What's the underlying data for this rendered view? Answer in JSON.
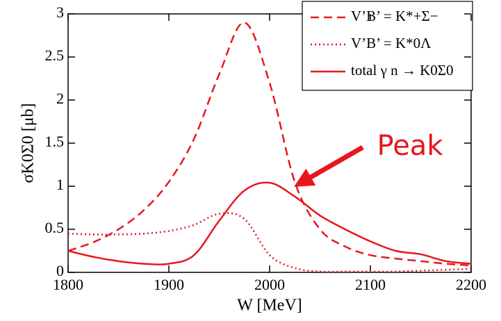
{
  "chart_data": {
    "type": "line",
    "x_label": "W [MeV]",
    "y_label": "σK0Σ0 [μb]",
    "annotation": "Peak",
    "x": [
      1800,
      1825,
      1850,
      1875,
      1900,
      1925,
      1950,
      1975,
      2000,
      2025,
      2050,
      2075,
      2100,
      2125,
      2150,
      2175,
      2200
    ],
    "series": [
      {
        "name": "V’B’ = K*+Σ−",
        "color": "#e8161e",
        "dash": "dashed",
        "values": [
          0.25,
          0.35,
          0.5,
          0.72,
          1.05,
          1.55,
          2.3,
          2.9,
          2.2,
          1.05,
          0.5,
          0.3,
          0.2,
          0.16,
          0.13,
          0.1,
          0.08
        ]
      },
      {
        "name": "V’B’ = K*0Λ",
        "color": "#e8161e",
        "dash": "dotted",
        "values": [
          0.45,
          0.44,
          0.44,
          0.45,
          0.48,
          0.55,
          0.68,
          0.62,
          0.2,
          0.05,
          0.01,
          0.01,
          0.01,
          0.01,
          0.02,
          0.03,
          0.04
        ]
      },
      {
        "name": "total γ n → K0Σ0",
        "color": "#e8161e",
        "dash": "solid",
        "values": [
          0.25,
          0.18,
          0.13,
          0.1,
          0.1,
          0.2,
          0.6,
          0.95,
          1.04,
          0.88,
          0.66,
          0.5,
          0.36,
          0.25,
          0.21,
          0.13,
          0.1
        ]
      }
    ],
    "xlim": [
      1800,
      2200
    ],
    "xticks": [
      1800,
      1900,
      2000,
      2100,
      2200
    ],
    "ylim": [
      0,
      3
    ],
    "yticks": [
      0,
      0.5,
      1,
      1.5,
      2,
      2.5,
      3
    ]
  }
}
